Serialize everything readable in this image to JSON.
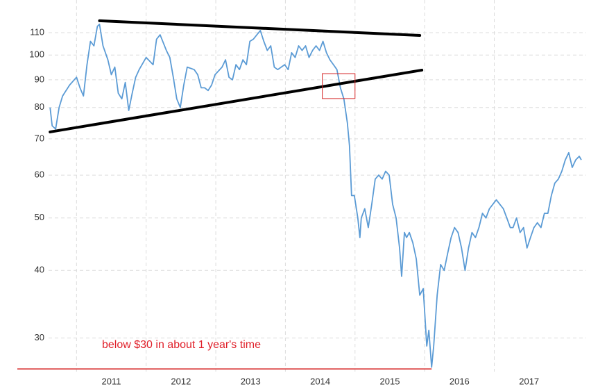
{
  "chart_data": {
    "type": "line",
    "log_y": true,
    "grid": true,
    "color": "#5b9bd5",
    "xlim": [
      2010.15,
      2018.32
    ],
    "ylim": [
      26.0,
      126.4
    ],
    "xticks": [
      2011,
      2012,
      2013,
      2014,
      2015,
      2016,
      2017
    ],
    "yticks": [
      30,
      40,
      50,
      60,
      70,
      80,
      90,
      100,
      110
    ],
    "x": [
      2010.62,
      2010.65,
      2010.7,
      2010.75,
      2010.8,
      2010.85,
      2010.9,
      2011.0,
      2011.05,
      2011.1,
      2011.15,
      2011.2,
      2011.25,
      2011.3,
      2011.33,
      2011.38,
      2011.45,
      2011.5,
      2011.55,
      2011.6,
      2011.65,
      2011.7,
      2011.75,
      2011.8,
      2011.85,
      2011.9,
      2012.0,
      2012.1,
      2012.15,
      2012.2,
      2012.29,
      2012.34,
      2012.39,
      2012.44,
      2012.49,
      2012.54,
      2012.59,
      2012.69,
      2012.74,
      2012.79,
      2012.84,
      2012.89,
      2012.94,
      2012.99,
      2013.09,
      2013.14,
      2013.19,
      2013.24,
      2013.29,
      2013.34,
      2013.39,
      2013.44,
      2013.49,
      2013.54,
      2013.59,
      2013.64,
      2013.69,
      2013.74,
      2013.79,
      2013.84,
      2013.89,
      2013.94,
      2013.99,
      2014.04,
      2014.09,
      2014.14,
      2014.19,
      2014.24,
      2014.29,
      2014.34,
      2014.39,
      2014.44,
      2014.49,
      2014.54,
      2014.59,
      2014.64,
      2014.69,
      2014.74,
      2014.79,
      2014.84,
      2014.89,
      2014.92,
      2014.95,
      2014.99,
      2015.04,
      2015.07,
      2015.09,
      2015.14,
      2015.19,
      2015.24,
      2015.29,
      2015.34,
      2015.39,
      2015.44,
      2015.49,
      2015.54,
      2015.59,
      2015.64,
      2015.67,
      2015.71,
      2015.74,
      2015.78,
      2015.83,
      2015.88,
      2015.93,
      2015.98,
      2016.03,
      2016.06,
      2016.1,
      2016.13,
      2016.18,
      2016.23,
      2016.28,
      2016.33,
      2016.38,
      2016.43,
      2016.48,
      2016.53,
      2016.58,
      2016.63,
      2016.68,
      2016.73,
      2016.78,
      2016.83,
      2016.88,
      2016.93,
      2016.98,
      2017.03,
      2017.08,
      2017.13,
      2017.18,
      2017.23,
      2017.27,
      2017.32,
      2017.37,
      2017.42,
      2017.47,
      2017.52,
      2017.57,
      2017.62,
      2017.67,
      2017.72,
      2017.77,
      2017.82,
      2017.87,
      2017.92,
      2017.97,
      2018.02,
      2018.07,
      2018.12,
      2018.17,
      2018.22,
      2018.25
    ],
    "values": [
      80,
      74,
      73,
      80,
      84,
      86,
      88,
      91,
      87,
      84,
      96,
      106,
      104,
      113,
      114,
      104,
      98,
      92,
      95,
      85,
      83,
      89,
      79,
      85,
      91,
      94,
      99,
      96,
      107,
      109,
      102,
      99,
      91,
      83,
      80,
      88,
      95,
      94,
      92,
      87,
      87,
      86,
      88,
      92,
      95,
      98,
      91,
      90,
      96,
      94,
      98,
      96,
      106,
      107,
      109,
      111,
      106,
      102,
      104,
      95,
      94,
      95,
      96,
      94,
      101,
      99,
      104,
      102,
      104,
      99,
      102,
      104,
      102,
      106,
      101,
      98,
      96,
      94,
      87,
      83,
      75,
      68,
      55,
      55,
      50,
      46,
      50,
      52,
      48,
      53,
      59,
      60,
      59,
      61,
      60,
      53,
      50,
      44,
      39,
      47,
      46,
      47,
      45,
      42,
      36,
      37,
      29,
      31,
      26.5,
      29,
      36,
      41,
      40,
      43,
      46,
      48,
      47,
      44,
      40,
      44,
      47,
      46,
      48,
      51,
      50,
      52,
      53,
      54,
      53,
      52,
      50,
      48,
      48,
      50,
      47,
      48,
      44,
      46,
      48,
      49,
      48,
      51,
      51,
      55,
      58,
      59,
      61,
      64,
      66,
      62,
      64,
      65,
      64
    ],
    "trendlines": [
      {
        "x": [
          2011.33,
          2015.93
        ],
        "y": [
          115.7,
          108.7
        ],
        "color": "#000000"
      },
      {
        "x": [
          2010.62,
          2015.96
        ],
        "y": [
          72.1,
          93.8
        ],
        "color": "#000000"
      }
    ],
    "box": {
      "x": [
        2014.53,
        2015.0
      ],
      "y": [
        83.1,
        92.4
      ],
      "color": "#d62728"
    },
    "hline": {
      "x": [
        2010.15,
        2016.1
      ],
      "y": 26.3,
      "color": "#d62728"
    },
    "annotation": "below $30 in about 1 year's time"
  }
}
